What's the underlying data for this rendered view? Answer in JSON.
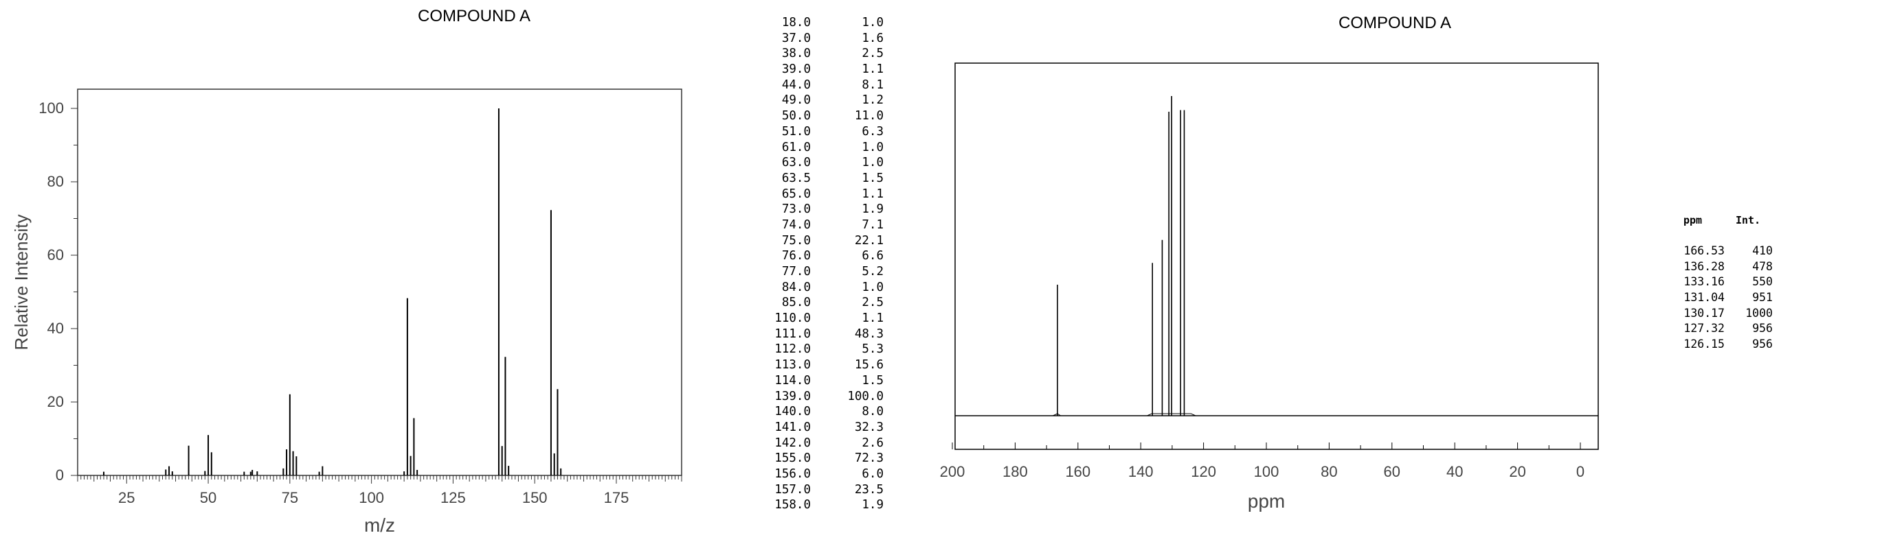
{
  "chart_data": [
    {
      "type": "bar",
      "subtype": "mass-spectrum",
      "title": "COMPOUND A",
      "xlabel": "m/z",
      "ylabel": "Relative Intensity",
      "xlim": [
        10,
        195
      ],
      "ylim": [
        0,
        105
      ],
      "xticks": [
        25,
        50,
        75,
        100,
        125,
        150,
        175
      ],
      "yticks": [
        0,
        20,
        40,
        60,
        80,
        100
      ],
      "grid": false,
      "x": [
        18.0,
        37.0,
        38.0,
        39.0,
        44.0,
        49.0,
        50.0,
        51.0,
        61.0,
        63.0,
        63.5,
        65.0,
        73.0,
        74.0,
        75.0,
        76.0,
        77.0,
        84.0,
        85.0,
        110.0,
        111.0,
        112.0,
        113.0,
        114.0,
        139.0,
        140.0,
        141.0,
        142.0,
        155.0,
        156.0,
        157.0,
        158.0
      ],
      "values": [
        1.0,
        1.6,
        2.5,
        1.1,
        8.1,
        1.2,
        11.0,
        6.3,
        1.0,
        1.0,
        1.5,
        1.1,
        1.9,
        7.1,
        22.1,
        6.6,
        5.2,
        1.0,
        2.5,
        1.1,
        48.3,
        5.3,
        15.6,
        1.5,
        100.0,
        8.0,
        32.3,
        2.6,
        72.3,
        6.0,
        23.5,
        1.9
      ]
    },
    {
      "type": "table",
      "subtype": "ms-peak-list",
      "rows": [
        [
          "18.0",
          "1.0"
        ],
        [
          "37.0",
          "1.6"
        ],
        [
          "38.0",
          "2.5"
        ],
        [
          "39.0",
          "1.1"
        ],
        [
          "44.0",
          "8.1"
        ],
        [
          "49.0",
          "1.2"
        ],
        [
          "50.0",
          "11.0"
        ],
        [
          "51.0",
          "6.3"
        ],
        [
          "61.0",
          "1.0"
        ],
        [
          "63.0",
          "1.0"
        ],
        [
          "63.5",
          "1.5"
        ],
        [
          "65.0",
          "1.1"
        ],
        [
          "73.0",
          "1.9"
        ],
        [
          "74.0",
          "7.1"
        ],
        [
          "75.0",
          "22.1"
        ],
        [
          "76.0",
          "6.6"
        ],
        [
          "77.0",
          "5.2"
        ],
        [
          "84.0",
          "1.0"
        ],
        [
          "85.0",
          "2.5"
        ],
        [
          "110.0",
          "1.1"
        ],
        [
          "111.0",
          "48.3"
        ],
        [
          "112.0",
          "5.3"
        ],
        [
          "113.0",
          "15.6"
        ],
        [
          "114.0",
          "1.5"
        ],
        [
          "139.0",
          "100.0"
        ],
        [
          "140.0",
          "8.0"
        ],
        [
          "141.0",
          "32.3"
        ],
        [
          "142.0",
          "2.6"
        ],
        [
          "155.0",
          "72.3"
        ],
        [
          "156.0",
          "6.0"
        ],
        [
          "157.0",
          "23.5"
        ],
        [
          "158.0",
          "1.9"
        ]
      ]
    },
    {
      "type": "line",
      "subtype": "13C-NMR-spectrum",
      "title": "COMPOUND A",
      "xlabel": "ppm",
      "ylabel": "",
      "xlim": [
        200,
        -5
      ],
      "xticks": [
        200,
        180,
        160,
        140,
        120,
        100,
        80,
        60,
        40,
        20,
        0
      ],
      "x_reversed": true,
      "grid": false,
      "peaks": [
        {
          "ppm": 166.53,
          "int": 410
        },
        {
          "ppm": 136.28,
          "int": 478
        },
        {
          "ppm": 133.16,
          "int": 550
        },
        {
          "ppm": 131.04,
          "int": 951
        },
        {
          "ppm": 130.17,
          "int": 1000
        },
        {
          "ppm": 127.32,
          "int": 956
        },
        {
          "ppm": 126.15,
          "int": 956
        }
      ]
    },
    {
      "type": "table",
      "subtype": "nmr-peak-list",
      "headers": [
        "ppm",
        "Int."
      ],
      "rows": [
        [
          "166.53",
          "410"
        ],
        [
          "136.28",
          "478"
        ],
        [
          "133.16",
          "550"
        ],
        [
          "131.04",
          "951"
        ],
        [
          "130.17",
          "1000"
        ],
        [
          "127.32",
          "956"
        ],
        [
          "126.15",
          "956"
        ]
      ]
    }
  ]
}
